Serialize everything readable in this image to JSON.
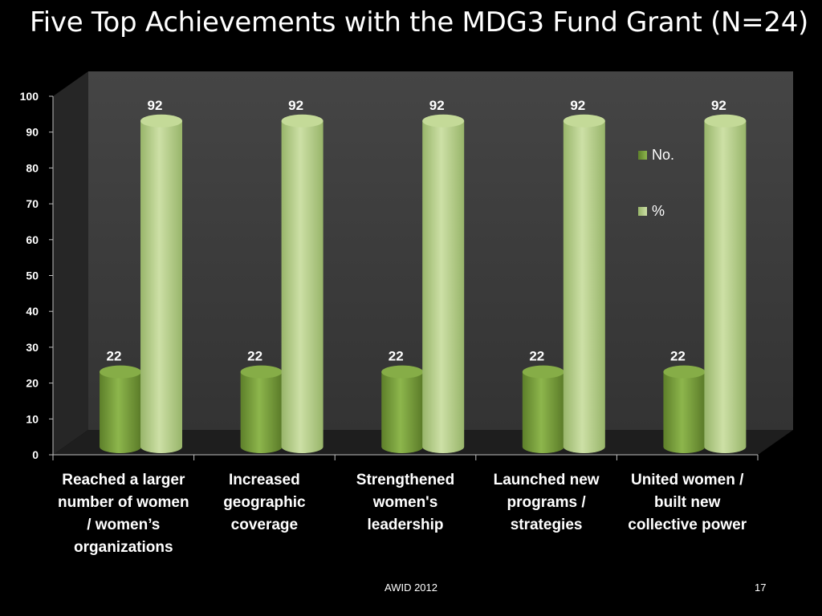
{
  "chart_data": {
    "type": "bar",
    "title": "Five Top Achievements with the MDG3 Fund Grant (N=24)",
    "categories": [
      "Reached a larger number of women / women’s organizations",
      "Increased geographic coverage",
      "Strengthened women's leadership",
      "Launched new programs / strategies",
      "United women / built new collective power"
    ],
    "series": [
      {
        "name": "No.",
        "values": [
          22,
          22,
          22,
          22,
          22
        ],
        "color": "#7fa63f"
      },
      {
        "name": "%",
        "values": [
          92,
          92,
          92,
          92,
          92
        ],
        "color": "#b9d28a"
      }
    ],
    "ylim": [
      0,
      100
    ],
    "yticks": [
      0,
      10,
      20,
      30,
      40,
      50,
      60,
      70,
      80,
      90,
      100
    ],
    "xlabel": "",
    "ylabel": "",
    "legend": "right"
  },
  "footer": {
    "source": "AWID 2012",
    "page": "17"
  },
  "colors": {
    "background": "#000000",
    "wall": "#3a3a3a",
    "floor": "#242424",
    "text": "#ffffff"
  }
}
